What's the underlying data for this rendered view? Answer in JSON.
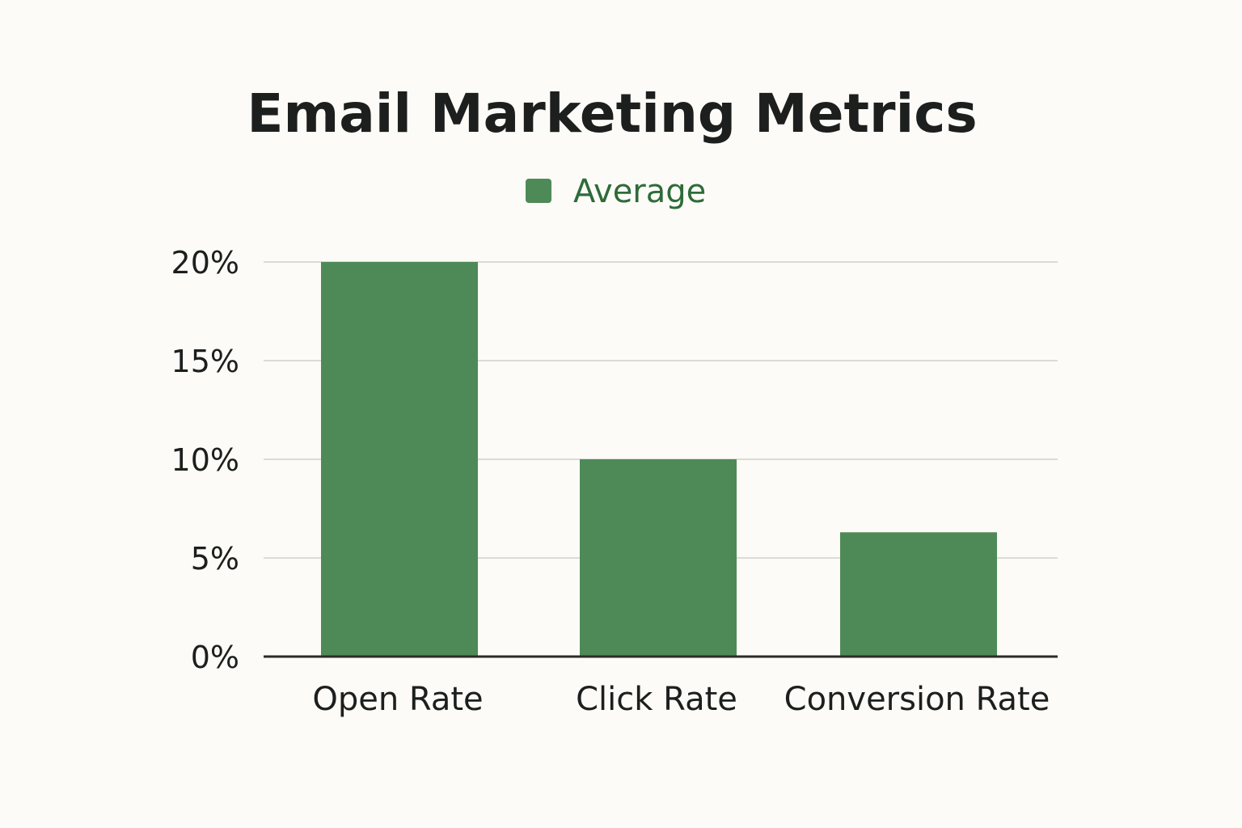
{
  "chart_data": {
    "type": "bar",
    "title": "Email Marketing Metrics",
    "categories": [
      "Open Rate",
      "Click Rate",
      "Conversion Rate"
    ],
    "series": [
      {
        "name": "Average",
        "values": [
          20,
          10,
          6.3
        ]
      }
    ],
    "ylim": [
      0,
      20
    ],
    "yticks": [
      {
        "value": 0,
        "label": "0%"
      },
      {
        "value": 5,
        "label": "5%"
      },
      {
        "value": 10,
        "label": "10%"
      },
      {
        "value": 15,
        "label": "15%"
      },
      {
        "value": 20,
        "label": "20%"
      }
    ],
    "grid": true,
    "legend": "top-center"
  },
  "colors": {
    "bar": "#4e8a57",
    "legend_text": "#2e6b3a",
    "grid": "#dcdcd6",
    "axis": "#2a2c2a",
    "background": "#fcfbf7"
  }
}
